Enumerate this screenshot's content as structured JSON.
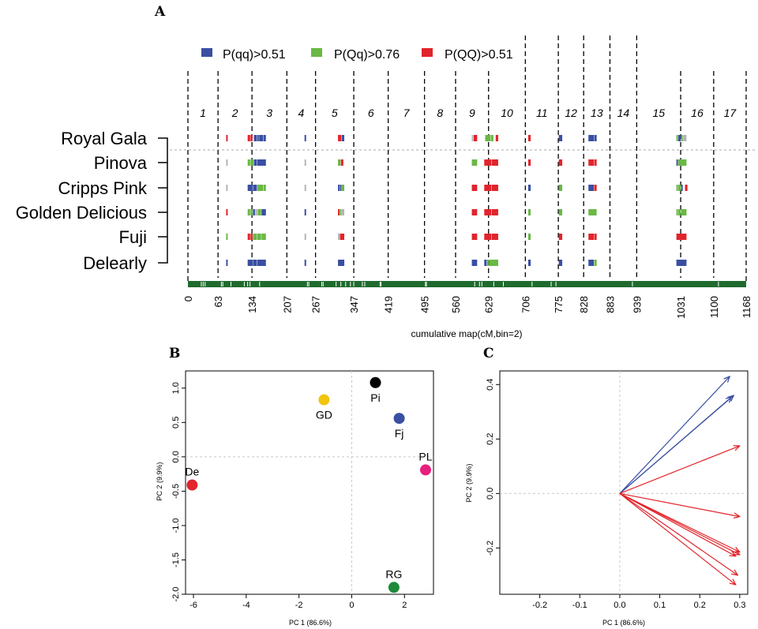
{
  "panel_labels": {
    "a": "A",
    "b": "B",
    "c": "C"
  },
  "colors": {
    "qq": "#3a4fa3",
    "Qq": "#6ab845",
    "QQ": "#e2242b",
    "na": "#b5b5b5",
    "track": "#1f6b2e",
    "biplot_blue": "#3a4fa3",
    "biplot_red": "#e2242b"
  },
  "chart_data": [
    {
      "type": "other",
      "panel": "A",
      "legend": [
        {
          "key": "qq",
          "label": "P(qq)>0.51"
        },
        {
          "key": "Qq",
          "label": "P(Qq)>0.76"
        },
        {
          "key": "QQ",
          "label": "P(QQ)>0.51"
        }
      ],
      "chromosomes": [
        "1",
        "2",
        "3",
        "4",
        "5",
        "6",
        "7",
        "8",
        "9",
        "10",
        "11",
        "12",
        "13",
        "14",
        "15",
        "16",
        "17"
      ],
      "boundaries": [
        0,
        63,
        134,
        207,
        267,
        347,
        419,
        495,
        560,
        629,
        706,
        775,
        828,
        883,
        939,
        1031,
        1100,
        1168
      ],
      "xlabel": "cumulative map(cM,bin=2)",
      "cultivars": [
        "Royal Gala",
        "Pinova",
        "Cripps Pink",
        "Golden Delicious",
        "Fuji",
        "Delearly"
      ],
      "segments": [
        [
          [
            80,
            84,
            "QQ"
          ],
          [
            125,
            131,
            "QQ"
          ],
          [
            131,
            136,
            "QQ"
          ],
          [
            138,
            145,
            "qq"
          ],
          [
            145,
            149,
            "qq"
          ],
          [
            149,
            158,
            "qq"
          ],
          [
            158,
            164,
            "qq"
          ],
          [
            244,
            248,
            "qq"
          ],
          [
            314,
            322,
            "QQ"
          ],
          [
            322,
            328,
            "qq"
          ],
          [
            594,
            598,
            "na"
          ],
          [
            598,
            606,
            "QQ"
          ],
          [
            622,
            634,
            "Qq"
          ],
          [
            634,
            640,
            "Qq"
          ],
          [
            644,
            650,
            "QQ"
          ],
          [
            712,
            718,
            "QQ"
          ],
          [
            776,
            784,
            "qq"
          ],
          [
            838,
            850,
            "qq"
          ],
          [
            850,
            856,
            "qq"
          ],
          [
            1022,
            1026,
            "Qq"
          ],
          [
            1026,
            1032,
            "qq"
          ],
          [
            1032,
            1036,
            "Qq"
          ],
          [
            1036,
            1044,
            "na"
          ]
        ],
        [
          [
            80,
            84,
            "na"
          ],
          [
            125,
            131,
            "Qq"
          ],
          [
            131,
            138,
            "Qq"
          ],
          [
            138,
            145,
            "qq"
          ],
          [
            145,
            164,
            "qq"
          ],
          [
            244,
            248,
            "na"
          ],
          [
            314,
            320,
            "Qq"
          ],
          [
            320,
            326,
            "QQ"
          ],
          [
            594,
            606,
            "Qq"
          ],
          [
            620,
            636,
            "QQ"
          ],
          [
            636,
            650,
            "QQ"
          ],
          [
            712,
            718,
            "QQ"
          ],
          [
            776,
            784,
            "QQ"
          ],
          [
            838,
            850,
            "QQ"
          ],
          [
            850,
            856,
            "QQ"
          ],
          [
            1022,
            1026,
            "qq"
          ],
          [
            1026,
            1044,
            "Qq"
          ]
        ],
        [
          [
            80,
            84,
            "na"
          ],
          [
            125,
            136,
            "qq"
          ],
          [
            136,
            145,
            "qq"
          ],
          [
            145,
            158,
            "Qq"
          ],
          [
            158,
            164,
            "Qq"
          ],
          [
            244,
            248,
            "na"
          ],
          [
            314,
            318,
            "qq"
          ],
          [
            318,
            322,
            "qq"
          ],
          [
            322,
            328,
            "Qq"
          ],
          [
            594,
            606,
            "QQ"
          ],
          [
            620,
            636,
            "QQ"
          ],
          [
            636,
            650,
            "QQ"
          ],
          [
            712,
            718,
            "qq"
          ],
          [
            776,
            784,
            "Qq"
          ],
          [
            838,
            850,
            "qq"
          ],
          [
            850,
            856,
            "QQ"
          ],
          [
            1022,
            1026,
            "Qq"
          ],
          [
            1026,
            1032,
            "Qq"
          ],
          [
            1032,
            1036,
            "qq"
          ],
          [
            1040,
            1046,
            "QQ"
          ]
        ],
        [
          [
            80,
            84,
            "QQ"
          ],
          [
            125,
            131,
            "Qq"
          ],
          [
            131,
            136,
            "Qq"
          ],
          [
            136,
            141,
            "qq"
          ],
          [
            141,
            146,
            "na"
          ],
          [
            146,
            154,
            "Qq"
          ],
          [
            154,
            164,
            "qq"
          ],
          [
            244,
            248,
            "qq"
          ],
          [
            314,
            318,
            "QQ"
          ],
          [
            318,
            322,
            "Qq"
          ],
          [
            322,
            328,
            "na"
          ],
          [
            594,
            606,
            "QQ"
          ],
          [
            620,
            636,
            "QQ"
          ],
          [
            636,
            650,
            "QQ"
          ],
          [
            712,
            718,
            "Qq"
          ],
          [
            776,
            784,
            "Qq"
          ],
          [
            838,
            856,
            "Qq"
          ],
          [
            1022,
            1026,
            "Qq"
          ],
          [
            1026,
            1032,
            "Qq"
          ],
          [
            1032,
            1044,
            "Qq"
          ]
        ],
        [
          [
            80,
            84,
            "Qq"
          ],
          [
            125,
            131,
            "QQ"
          ],
          [
            131,
            136,
            "QQ"
          ],
          [
            136,
            145,
            "Qq"
          ],
          [
            145,
            154,
            "Qq"
          ],
          [
            154,
            164,
            "Qq"
          ],
          [
            244,
            248,
            "na"
          ],
          [
            314,
            318,
            "na"
          ],
          [
            318,
            328,
            "QQ"
          ],
          [
            594,
            606,
            "QQ"
          ],
          [
            620,
            636,
            "QQ"
          ],
          [
            636,
            650,
            "QQ"
          ],
          [
            712,
            718,
            "Qq"
          ],
          [
            776,
            784,
            "QQ"
          ],
          [
            838,
            850,
            "QQ"
          ],
          [
            850,
            856,
            "QQ"
          ],
          [
            1022,
            1044,
            "QQ"
          ]
        ],
        [
          [
            80,
            84,
            "qq"
          ],
          [
            125,
            136,
            "qq"
          ],
          [
            136,
            145,
            "qq"
          ],
          [
            145,
            164,
            "qq"
          ],
          [
            244,
            248,
            "qq"
          ],
          [
            314,
            328,
            "qq"
          ],
          [
            594,
            606,
            "qq"
          ],
          [
            620,
            626,
            "qq"
          ],
          [
            626,
            630,
            "Qq"
          ],
          [
            630,
            650,
            "Qq"
          ],
          [
            712,
            718,
            "qq"
          ],
          [
            776,
            784,
            "qq"
          ],
          [
            838,
            850,
            "qq"
          ],
          [
            850,
            856,
            "Qq"
          ],
          [
            1022,
            1044,
            "qq"
          ]
        ]
      ],
      "track_ticks": [
        28,
        32,
        36,
        70,
        73,
        90,
        118,
        125,
        130,
        150,
        250,
        253,
        280,
        283,
        310,
        320,
        330,
        340,
        347,
        365,
        370,
        402,
        404,
        497,
        499,
        600,
        610,
        615,
        640,
        660,
        720,
        760,
        770,
        930,
        1110
      ]
    },
    {
      "type": "scatter",
      "panel": "B",
      "xlabel": "PC 1 (86.6%)",
      "ylabel": "PC 2 (9.9%)",
      "xlim": [
        -6.3,
        3.1
      ],
      "ylim": [
        -2.0,
        1.25
      ],
      "xticks": [
        -6,
        -4,
        -2,
        0,
        2
      ],
      "yticks": [
        1.0,
        0.5,
        0.0,
        -0.5,
        -1.0,
        -1.5,
        -2.0
      ],
      "ytick_labels": [
        "1.0",
        "0.5",
        "0.0",
        "-0.5",
        "-1.0",
        "-1.5",
        "-2.0"
      ],
      "points": [
        {
          "label": "Pi",
          "x": 0.9,
          "y": 1.08,
          "color": "#000000",
          "pos": "below"
        },
        {
          "label": "GD",
          "x": -1.05,
          "y": 0.83,
          "color": "#f1c40f",
          "pos": "below"
        },
        {
          "label": "Fj",
          "x": 1.8,
          "y": 0.56,
          "color": "#3a4fa3",
          "pos": "below"
        },
        {
          "label": "PL",
          "x": 2.8,
          "y": -0.19,
          "color": "#e6207f",
          "pos": "above"
        },
        {
          "label": "De",
          "x": -6.05,
          "y": -0.41,
          "color": "#e2242b",
          "pos": "above"
        },
        {
          "label": "RG",
          "x": 1.6,
          "y": -1.9,
          "color": "#1f8a3a",
          "pos": "above"
        }
      ]
    },
    {
      "type": "biplot",
      "panel": "C",
      "xlabel": "PC 1 (86.6%)",
      "ylabel": "PC 2 (9.9%)",
      "xlim": [
        -0.3,
        0.32
      ],
      "ylim": [
        -0.37,
        0.45
      ],
      "xticks": [
        -0.2,
        -0.1,
        0.0,
        0.1,
        0.2,
        0.3
      ],
      "xtick_labels": [
        "-0.2",
        "-0.1",
        "0.0",
        "0.1",
        "0.2",
        "0.3"
      ],
      "yticks": [
        0.4,
        0.2,
        0.0,
        -0.2
      ],
      "ytick_labels": [
        "0.4",
        "0.2",
        "0.0",
        "-0.2"
      ],
      "arrows": [
        {
          "x": 0.275,
          "y": 0.43,
          "color": "blue"
        },
        {
          "x": 0.285,
          "y": 0.36,
          "color": "blue"
        },
        {
          "x": 0.28,
          "y": 0.355,
          "color": "blue"
        },
        {
          "x": 0.3,
          "y": 0.175,
          "color": "red"
        },
        {
          "x": 0.3,
          "y": -0.085,
          "color": "red"
        },
        {
          "x": 0.3,
          "y": -0.215,
          "color": "red"
        },
        {
          "x": 0.3,
          "y": -0.225,
          "color": "red"
        },
        {
          "x": 0.29,
          "y": -0.23,
          "color": "red"
        },
        {
          "x": 0.295,
          "y": -0.3,
          "color": "red"
        },
        {
          "x": 0.29,
          "y": -0.335,
          "color": "red"
        }
      ]
    }
  ]
}
